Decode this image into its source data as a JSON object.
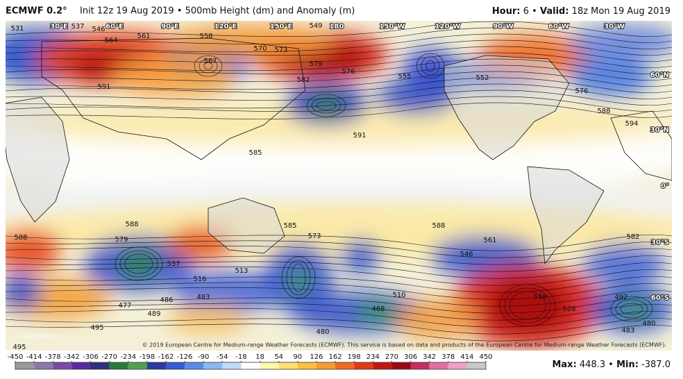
{
  "header": {
    "title": "ECMWF 0.2°",
    "subtitle": "Init 12z 19 Aug 2019 • 500mb Height (dm) and Anomaly (m)",
    "hour_label": "Hour:",
    "hour": "6",
    "bullet": "•",
    "valid_label": "Valid:",
    "valid": "18z Mon 19 Aug 2019"
  },
  "map": {
    "longitude_labels": [
      "30°E",
      "60°E",
      "90°E",
      "120°E",
      "150°E",
      "180",
      "150°W",
      "120°W",
      "90°W",
      "60°W",
      "30°W"
    ],
    "latitude_labels": [
      "60°N",
      "30°N",
      "0°",
      "30°S",
      "60°S"
    ],
    "contour_labels": [
      531,
      537,
      546,
      564,
      561,
      558,
      570,
      573,
      549,
      579,
      576,
      582,
      567,
      591,
      588,
      594,
      591,
      585,
      588,
      585,
      573,
      588,
      582,
      588,
      579,
      561,
      546,
      537,
      513,
      510,
      516,
      486,
      483,
      477,
      489,
      495,
      495,
      528,
      558,
      492,
      483,
      480,
      480,
      468,
      552,
      576,
      555
    ],
    "watermark": "WEATHERBELL",
    "copyright": "© 2019 European Centre for Medium-range Weather Forecasts (ECMWF). This service is based on data and products of the European Centre for Medium-range Weather Forecasts (ECMWF)."
  },
  "colorbar": {
    "ticks": [
      -450,
      -414,
      -378,
      -342,
      -306,
      -270,
      -234,
      -198,
      -162,
      -126,
      -90,
      -54,
      -18,
      18,
      54,
      90,
      126,
      162,
      198,
      234,
      270,
      306,
      342,
      378,
      414,
      450
    ]
  },
  "stats": {
    "max_label": "Max:",
    "max": "448.3",
    "bullet": "•",
    "min_label": "Min:",
    "min": "-387.0"
  }
}
